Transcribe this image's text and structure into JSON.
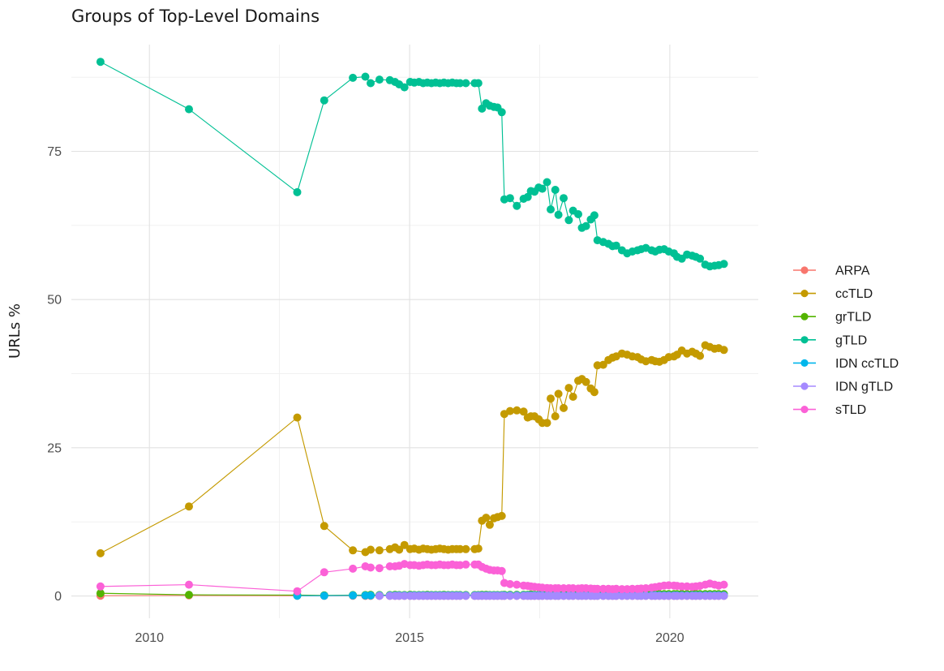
{
  "chart_data": {
    "type": "line",
    "title": "Groups of Top-Level Domains",
    "xlabel": "",
    "ylabel": "URLs %",
    "grid": true,
    "legend_position": "right",
    "xlim": [
      2008.5,
      2021.7
    ],
    "ylim": [
      -3.76,
      93.0
    ],
    "x_ticks": [
      2010,
      2015,
      2020
    ],
    "x_minor": [
      2012.5,
      2017.5
    ],
    "y_ticks": [
      0,
      25,
      50,
      75
    ],
    "y_minor": [
      12.5,
      37.5,
      62.5,
      87.5
    ],
    "x": [
      2009.06,
      2010.76,
      2012.84,
      2013.36,
      2013.91,
      2014.15,
      2014.25,
      2014.42,
      2014.62,
      2014.72,
      2014.8,
      2014.9,
      2015.01,
      2015.09,
      2015.18,
      2015.26,
      2015.34,
      2015.42,
      2015.5,
      2015.58,
      2015.66,
      2015.74,
      2015.82,
      2015.9,
      2015.97,
      2016.08,
      2016.25,
      2016.32,
      2016.39,
      2016.47,
      2016.54,
      2016.62,
      2016.69,
      2016.77,
      2016.82,
      2016.93,
      2017.06,
      2017.19,
      2017.27,
      2017.33,
      2017.4,
      2017.48,
      2017.55,
      2017.64,
      2017.71,
      2017.8,
      2017.86,
      2017.96,
      2018.06,
      2018.14,
      2018.24,
      2018.31,
      2018.39,
      2018.48,
      2018.55,
      2018.61,
      2018.72,
      2018.82,
      2018.9,
      2018.97,
      2019.08,
      2019.18,
      2019.28,
      2019.38,
      2019.45,
      2019.54,
      2019.65,
      2019.72,
      2019.8,
      2019.89,
      2019.98,
      2020.08,
      2020.14,
      2020.23,
      2020.33,
      2020.43,
      2020.5,
      2020.58,
      2020.68,
      2020.77,
      2020.86,
      2020.94,
      2021.04
    ],
    "series": [
      {
        "name": "ARPA",
        "color": "#F8766D",
        "values": [
          0.05,
          0.1,
          0.05,
          0.03,
          0.05,
          0.02,
          0.02,
          0.02,
          0.02,
          0.02,
          0.02,
          0.02,
          0.02,
          0.02,
          0.02,
          0.02,
          0.02,
          0.02,
          0.02,
          0.02,
          0.02,
          0.02,
          0.02,
          0.02,
          0.02,
          0.02,
          0.02,
          0.02,
          0.02,
          0.02,
          0.02,
          0.02,
          0.02,
          0.02,
          0.02,
          0.02,
          0.02,
          0.02,
          0.02,
          0.02,
          0.02,
          0.02,
          0.02,
          0.02,
          0.02,
          0.02,
          0.02,
          0.02,
          0.02,
          0.02,
          0.02,
          0.02,
          0.02,
          0.02,
          0.02,
          0.02,
          0.02,
          0.02,
          0.02,
          0.02,
          0.02,
          0.02,
          0.02,
          0.02,
          0.02,
          0.02,
          0.02,
          0.02,
          0.02,
          0.02,
          0.02,
          0.02,
          0.02,
          0.02,
          0.02,
          0.02,
          0.02,
          0.02,
          0.02,
          0.02,
          0.02,
          0.02,
          0.02
        ]
      },
      {
        "name": "ccTLD",
        "color": "#C49A00",
        "values": [
          7.2,
          15.1,
          30.1,
          11.8,
          7.7,
          7.4,
          7.8,
          7.7,
          7.9,
          8.2,
          7.8,
          8.6,
          7.9,
          8.0,
          7.8,
          8.0,
          7.9,
          7.8,
          7.9,
          8.0,
          7.9,
          7.8,
          7.9,
          7.9,
          7.9,
          7.9,
          7.9,
          8.0,
          12.7,
          13.2,
          12.0,
          13.1,
          13.3,
          13.5,
          30.7,
          31.2,
          31.3,
          31.1,
          30.1,
          30.3,
          30.3,
          29.8,
          29.2,
          29.2,
          33.3,
          30.3,
          34.1,
          31.7,
          35.1,
          33.6,
          36.3,
          36.6,
          36.1,
          35.0,
          34.4,
          38.9,
          39.0,
          39.8,
          40.2,
          40.4,
          40.9,
          40.7,
          40.4,
          40.3,
          39.9,
          39.6,
          39.8,
          39.6,
          39.5,
          39.8,
          40.3,
          40.4,
          40.7,
          41.4,
          40.9,
          41.2,
          40.9,
          40.5,
          42.3,
          42.0,
          41.7,
          41.8,
          41.5
        ]
      },
      {
        "name": "grTLD",
        "color": "#53B400",
        "values": [
          0.45,
          0.2,
          0.15,
          0.1,
          0.15,
          0.15,
          0.2,
          0.15,
          0.15,
          0.2,
          0.15,
          0.15,
          0.2,
          0.15,
          0.15,
          0.15,
          0.2,
          0.15,
          0.15,
          0.15,
          0.2,
          0.15,
          0.15,
          0.15,
          0.15,
          0.15,
          0.15,
          0.15,
          0.2,
          0.2,
          0.15,
          0.15,
          0.15,
          0.15,
          0.2,
          0.2,
          0.2,
          0.2,
          0.2,
          0.25,
          0.2,
          0.2,
          0.2,
          0.25,
          0.2,
          0.25,
          0.2,
          0.25,
          0.25,
          0.25,
          0.25,
          0.25,
          0.25,
          0.25,
          0.25,
          0.25,
          0.25,
          0.25,
          0.25,
          0.3,
          0.25,
          0.25,
          0.3,
          0.25,
          0.3,
          0.3,
          0.3,
          0.3,
          0.3,
          0.3,
          0.3,
          0.3,
          0.3,
          0.35,
          0.3,
          0.3,
          0.35,
          0.3,
          0.3,
          0.3,
          0.3,
          0.3,
          0.3
        ]
      },
      {
        "name": "gTLD",
        "color": "#00C094",
        "values": [
          90.1,
          82.1,
          68.1,
          83.6,
          87.4,
          87.6,
          86.5,
          87.1,
          87.0,
          86.7,
          86.3,
          85.8,
          86.7,
          86.6,
          86.7,
          86.5,
          86.6,
          86.5,
          86.6,
          86.5,
          86.6,
          86.5,
          86.6,
          86.5,
          86.5,
          86.5,
          86.5,
          86.5,
          82.2,
          83.1,
          82.7,
          82.5,
          82.4,
          81.6,
          66.9,
          67.1,
          65.8,
          67.0,
          67.3,
          68.3,
          68.2,
          68.9,
          68.7,
          69.8,
          65.2,
          68.5,
          64.3,
          67.1,
          63.4,
          65.0,
          64.4,
          62.1,
          62.4,
          63.5,
          64.2,
          60.0,
          59.7,
          59.4,
          59.0,
          59.1,
          58.3,
          57.8,
          58.1,
          58.3,
          58.5,
          58.7,
          58.3,
          58.1,
          58.4,
          58.5,
          58.1,
          57.8,
          57.2,
          56.9,
          57.6,
          57.4,
          57.2,
          56.9,
          55.9,
          55.6,
          55.7,
          55.8,
          56.0
        ]
      },
      {
        "name": "IDN ccTLD",
        "color": "#00B6EB",
        "values": [
          null,
          null,
          0.05,
          0.05,
          0.1,
          0.08,
          0.08,
          0.08,
          0.08,
          0.08,
          0.08,
          0.08,
          0.08,
          0.08,
          0.08,
          0.08,
          0.08,
          0.08,
          0.08,
          0.08,
          0.08,
          0.08,
          0.08,
          0.08,
          0.08,
          0.08,
          0.08,
          0.08,
          0.08,
          0.08,
          0.08,
          0.08,
          0.08,
          0.08,
          0.1,
          0.1,
          0.1,
          0.1,
          0.1,
          0.1,
          0.1,
          0.1,
          0.1,
          0.1,
          0.1,
          0.1,
          0.1,
          0.1,
          0.1,
          0.1,
          0.1,
          0.1,
          0.1,
          0.1,
          0.1,
          0.1,
          0.1,
          0.1,
          0.1,
          0.1,
          0.1,
          0.1,
          0.1,
          0.1,
          0.1,
          0.1,
          0.1,
          0.1,
          0.1,
          0.1,
          0.1,
          0.1,
          0.1,
          0.1,
          0.1,
          0.1,
          0.1,
          0.1,
          0.1,
          0.1,
          0.1,
          0.1,
          0.1
        ]
      },
      {
        "name": "IDN gTLD",
        "color": "#A58AFF",
        "values": [
          null,
          null,
          null,
          null,
          null,
          null,
          null,
          0.02,
          0.02,
          0.02,
          0.02,
          0.02,
          0.02,
          0.02,
          0.02,
          0.02,
          0.02,
          0.02,
          0.02,
          0.02,
          0.02,
          0.02,
          0.02,
          0.02,
          0.02,
          0.02,
          0.02,
          0.02,
          0.02,
          0.02,
          0.02,
          0.02,
          0.02,
          0.02,
          0.02,
          0.02,
          0.02,
          0.02,
          0.02,
          0.02,
          0.02,
          0.02,
          0.02,
          0.02,
          0.02,
          0.02,
          0.02,
          0.02,
          0.02,
          0.02,
          0.02,
          0.02,
          0.02,
          0.02,
          0.02,
          0.02,
          0.02,
          0.02,
          0.02,
          0.02,
          0.02,
          0.02,
          0.02,
          0.02,
          0.02,
          0.02,
          0.02,
          0.02,
          0.02,
          0.02,
          0.02,
          0.02,
          0.02,
          0.02,
          0.02,
          0.02,
          0.02,
          0.02,
          0.02,
          0.02,
          0.02,
          0.02,
          0.02
        ]
      },
      {
        "name": "sTLD",
        "color": "#FB61D7",
        "values": [
          1.6,
          1.9,
          0.8,
          4.0,
          4.6,
          5.0,
          4.8,
          4.7,
          5.0,
          5.0,
          5.1,
          5.4,
          5.2,
          5.2,
          5.1,
          5.2,
          5.3,
          5.2,
          5.2,
          5.3,
          5.2,
          5.2,
          5.3,
          5.2,
          5.2,
          5.3,
          5.3,
          5.3,
          4.9,
          4.6,
          4.4,
          4.3,
          4.3,
          4.2,
          2.2,
          2.0,
          1.9,
          1.75,
          1.7,
          1.6,
          1.55,
          1.45,
          1.4,
          1.35,
          1.3,
          1.3,
          1.3,
          1.3,
          1.3,
          1.3,
          1.25,
          1.3,
          1.3,
          1.25,
          1.2,
          1.2,
          1.2,
          1.2,
          1.15,
          1.2,
          1.15,
          1.15,
          1.2,
          1.2,
          1.25,
          1.3,
          1.4,
          1.5,
          1.6,
          1.75,
          1.8,
          1.75,
          1.7,
          1.6,
          1.6,
          1.55,
          1.6,
          1.7,
          1.9,
          2.1,
          1.9,
          1.75,
          1.9
        ]
      }
    ],
    "style": {
      "background": "#ffffff",
      "grid_major_color": "#e2e2e2",
      "grid_minor_color": "#efefef",
      "tick_label_color": "#4d4d4d",
      "title_color": "#1a1a1a"
    }
  }
}
